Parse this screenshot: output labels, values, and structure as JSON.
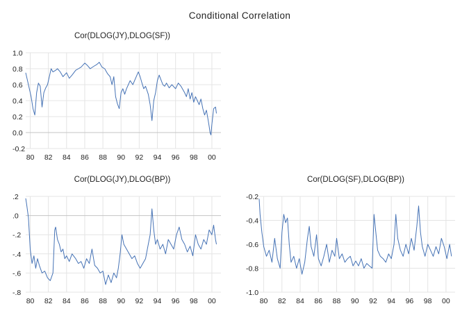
{
  "figure": {
    "title": "Conditional Correlation"
  },
  "chart_data": [
    {
      "type": "line",
      "title": "Cor(DLOG(JY),DLOG(SF))",
      "xlabel": "",
      "ylabel": "",
      "xlim": [
        1979.5,
        2001.0
      ],
      "ylim": [
        -0.2,
        1.0
      ],
      "x_ticks": [
        1980,
        1982,
        1984,
        1986,
        1988,
        1990,
        1992,
        1994,
        1996,
        1998,
        2000
      ],
      "x_tick_labels": [
        "80",
        "82",
        "84",
        "86",
        "88",
        "90",
        "92",
        "94",
        "96",
        "98",
        "00"
      ],
      "y_ticks": [
        -0.2,
        0.0,
        0.2,
        0.4,
        0.6,
        0.8,
        1.0
      ],
      "y_tick_labels": [
        "-0.2",
        "0.0",
        "0.2",
        "0.4",
        "0.6",
        "0.8",
        "1.0"
      ],
      "grid": true,
      "color": "#4572b5",
      "series": [
        {
          "x": [
            1979.5,
            1979.7,
            1979.9,
            1980.1,
            1980.3,
            1980.5,
            1980.7,
            1980.9,
            1981.1,
            1981.3,
            1981.5,
            1981.7,
            1981.9,
            1982.1,
            1982.3,
            1982.5,
            1982.8,
            1983.0,
            1983.3,
            1983.6,
            1984.0,
            1984.3,
            1984.6,
            1985.0,
            1985.3,
            1985.6,
            1986.0,
            1986.3,
            1986.6,
            1987.0,
            1987.3,
            1987.6,
            1987.9,
            1988.2,
            1988.5,
            1988.8,
            1989.0,
            1989.2,
            1989.4,
            1989.6,
            1989.8,
            1990.0,
            1990.2,
            1990.4,
            1990.6,
            1990.8,
            1991.0,
            1991.3,
            1991.6,
            1991.9,
            1992.1,
            1992.3,
            1992.5,
            1992.7,
            1993.0,
            1993.2,
            1993.4,
            1993.6,
            1993.8,
            1994.0,
            1994.2,
            1994.4,
            1994.6,
            1994.8,
            1995.0,
            1995.3,
            1995.6,
            1996.0,
            1996.3,
            1996.6,
            1997.0,
            1997.2,
            1997.4,
            1997.6,
            1997.8,
            1998.0,
            1998.2,
            1998.4,
            1998.6,
            1998.8,
            1999.0,
            1999.2,
            1999.4,
            1999.6,
            1999.7,
            1999.8,
            1999.9,
            2000.0,
            2000.2,
            2000.4,
            2000.5
          ],
          "y": [
            0.75,
            0.65,
            0.55,
            0.45,
            0.3,
            0.22,
            0.5,
            0.62,
            0.58,
            0.32,
            0.5,
            0.56,
            0.6,
            0.7,
            0.8,
            0.76,
            0.78,
            0.8,
            0.76,
            0.7,
            0.75,
            0.68,
            0.72,
            0.78,
            0.8,
            0.82,
            0.87,
            0.84,
            0.8,
            0.83,
            0.85,
            0.88,
            0.82,
            0.8,
            0.74,
            0.7,
            0.6,
            0.7,
            0.45,
            0.36,
            0.3,
            0.5,
            0.55,
            0.48,
            0.55,
            0.6,
            0.65,
            0.6,
            0.68,
            0.76,
            0.7,
            0.62,
            0.55,
            0.58,
            0.48,
            0.35,
            0.15,
            0.4,
            0.5,
            0.65,
            0.72,
            0.66,
            0.6,
            0.58,
            0.62,
            0.56,
            0.6,
            0.55,
            0.62,
            0.58,
            0.5,
            0.45,
            0.55,
            0.42,
            0.5,
            0.38,
            0.45,
            0.4,
            0.35,
            0.42,
            0.3,
            0.22,
            0.28,
            0.15,
            0.08,
            0.0,
            -0.03,
            0.1,
            0.3,
            0.32,
            0.24
          ]
        }
      ]
    },
    {
      "type": "line",
      "title": "Cor(DLOG(JY),DLOG(BP))",
      "xlabel": "",
      "ylabel": "",
      "xlim": [
        1979.5,
        2001.0
      ],
      "ylim": [
        -0.8,
        0.2
      ],
      "x_ticks": [
        1980,
        1982,
        1984,
        1986,
        1988,
        1990,
        1992,
        1994,
        1996,
        1998,
        2000
      ],
      "x_tick_labels": [
        "80",
        "82",
        "84",
        "86",
        "88",
        "90",
        "92",
        "94",
        "96",
        "98",
        "00"
      ],
      "y_ticks": [
        -0.8,
        -0.6,
        -0.4,
        -0.2,
        0.0,
        0.2
      ],
      "y_tick_labels": [
        "-.8",
        "-.6",
        "-.4",
        "-.2",
        ".0",
        ".2"
      ],
      "grid": true,
      "color": "#4572b5",
      "series": [
        {
          "x": [
            1979.5,
            1979.6,
            1979.7,
            1979.8,
            1980.0,
            1980.2,
            1980.4,
            1980.6,
            1980.8,
            1981.0,
            1981.3,
            1981.6,
            1981.9,
            1982.2,
            1982.5,
            1982.7,
            1982.8,
            1983.0,
            1983.2,
            1983.4,
            1983.6,
            1983.8,
            1984.0,
            1984.3,
            1984.6,
            1985.0,
            1985.3,
            1985.6,
            1985.9,
            1986.2,
            1986.5,
            1986.8,
            1987.1,
            1987.4,
            1987.7,
            1988.0,
            1988.3,
            1988.6,
            1988.9,
            1989.2,
            1989.5,
            1989.7,
            1989.9,
            1990.1,
            1990.3,
            1990.6,
            1990.9,
            1991.2,
            1991.5,
            1991.8,
            1992.1,
            1992.4,
            1992.7,
            1993.0,
            1993.2,
            1993.4,
            1993.6,
            1993.8,
            1994.0,
            1994.3,
            1994.6,
            1994.9,
            1995.2,
            1995.5,
            1995.8,
            1996.1,
            1996.4,
            1996.7,
            1997.0,
            1997.3,
            1997.6,
            1997.9,
            1998.2,
            1998.5,
            1998.8,
            1999.1,
            1999.4,
            1999.7,
            2000.0,
            2000.2,
            2000.4,
            2000.5
          ],
          "y": [
            0.18,
            0.12,
            0.05,
            -0.02,
            -0.35,
            -0.5,
            -0.42,
            -0.55,
            -0.45,
            -0.52,
            -0.6,
            -0.58,
            -0.65,
            -0.68,
            -0.6,
            -0.15,
            -0.12,
            -0.25,
            -0.3,
            -0.38,
            -0.35,
            -0.45,
            -0.42,
            -0.48,
            -0.4,
            -0.45,
            -0.5,
            -0.48,
            -0.55,
            -0.45,
            -0.5,
            -0.35,
            -0.52,
            -0.55,
            -0.6,
            -0.58,
            -0.72,
            -0.62,
            -0.7,
            -0.6,
            -0.65,
            -0.55,
            -0.4,
            -0.2,
            -0.3,
            -0.35,
            -0.4,
            -0.45,
            -0.42,
            -0.5,
            -0.55,
            -0.5,
            -0.45,
            -0.3,
            -0.2,
            0.07,
            -0.15,
            -0.3,
            -0.25,
            -0.35,
            -0.3,
            -0.4,
            -0.25,
            -0.3,
            -0.35,
            -0.2,
            -0.12,
            -0.25,
            -0.3,
            -0.38,
            -0.32,
            -0.42,
            -0.2,
            -0.3,
            -0.35,
            -0.25,
            -0.3,
            -0.15,
            -0.2,
            -0.1,
            -0.25,
            -0.3
          ]
        }
      ]
    },
    {
      "type": "line",
      "title": "Cor(DLOG(SF),DLOG(BP))",
      "xlabel": "",
      "ylabel": "",
      "xlim": [
        1979.5,
        2001.0
      ],
      "ylim": [
        -1.0,
        -0.2
      ],
      "x_ticks": [
        1980,
        1982,
        1984,
        1986,
        1988,
        1990,
        1992,
        1994,
        1996,
        1998,
        2000
      ],
      "x_tick_labels": [
        "80",
        "82",
        "84",
        "86",
        "88",
        "90",
        "92",
        "94",
        "96",
        "98",
        "00"
      ],
      "y_ticks": [
        -1.0,
        -0.8,
        -0.6,
        -0.4,
        -0.2
      ],
      "y_tick_labels": [
        "-1.0",
        "-0.8",
        "-0.6",
        "-0.4",
        "-0.2"
      ],
      "grid": true,
      "color": "#4572b5",
      "series": [
        {
          "x": [
            1979.5,
            1979.6,
            1979.8,
            1980.0,
            1980.3,
            1980.6,
            1980.9,
            1981.2,
            1981.5,
            1981.8,
            1982.0,
            1982.2,
            1982.4,
            1982.6,
            1982.8,
            1983.0,
            1983.3,
            1983.6,
            1983.9,
            1984.2,
            1984.5,
            1984.8,
            1985.0,
            1985.2,
            1985.5,
            1985.8,
            1986.0,
            1986.3,
            1986.6,
            1986.9,
            1987.2,
            1987.5,
            1987.8,
            1988.0,
            1988.3,
            1988.6,
            1988.9,
            1989.2,
            1989.5,
            1989.8,
            1990.1,
            1990.4,
            1990.7,
            1991.0,
            1991.3,
            1991.6,
            1991.9,
            1992.1,
            1992.3,
            1992.5,
            1992.8,
            1993.1,
            1993.4,
            1993.7,
            1994.0,
            1994.3,
            1994.5,
            1994.7,
            1995.0,
            1995.3,
            1995.6,
            1995.9,
            1996.2,
            1996.5,
            1996.8,
            1997.0,
            1997.2,
            1997.4,
            1997.7,
            1998.0,
            1998.3,
            1998.6,
            1998.9,
            1999.2,
            1999.5,
            1999.8,
            2000.1,
            2000.4,
            2000.6
          ],
          "y": [
            -0.22,
            -0.35,
            -0.5,
            -0.62,
            -0.7,
            -0.65,
            -0.75,
            -0.55,
            -0.72,
            -0.8,
            -0.5,
            -0.35,
            -0.42,
            -0.38,
            -0.6,
            -0.75,
            -0.7,
            -0.8,
            -0.72,
            -0.85,
            -0.75,
            -0.55,
            -0.45,
            -0.62,
            -0.7,
            -0.52,
            -0.72,
            -0.78,
            -0.7,
            -0.6,
            -0.75,
            -0.65,
            -0.7,
            -0.55,
            -0.72,
            -0.68,
            -0.75,
            -0.72,
            -0.7,
            -0.78,
            -0.74,
            -0.78,
            -0.72,
            -0.8,
            -0.76,
            -0.78,
            -0.8,
            -0.35,
            -0.5,
            -0.65,
            -0.7,
            -0.72,
            -0.75,
            -0.68,
            -0.72,
            -0.6,
            -0.35,
            -0.55,
            -0.65,
            -0.7,
            -0.6,
            -0.68,
            -0.55,
            -0.65,
            -0.45,
            -0.28,
            -0.5,
            -0.62,
            -0.7,
            -0.6,
            -0.65,
            -0.7,
            -0.62,
            -0.68,
            -0.55,
            -0.62,
            -0.72,
            -0.6,
            -0.7
          ]
        }
      ]
    }
  ]
}
